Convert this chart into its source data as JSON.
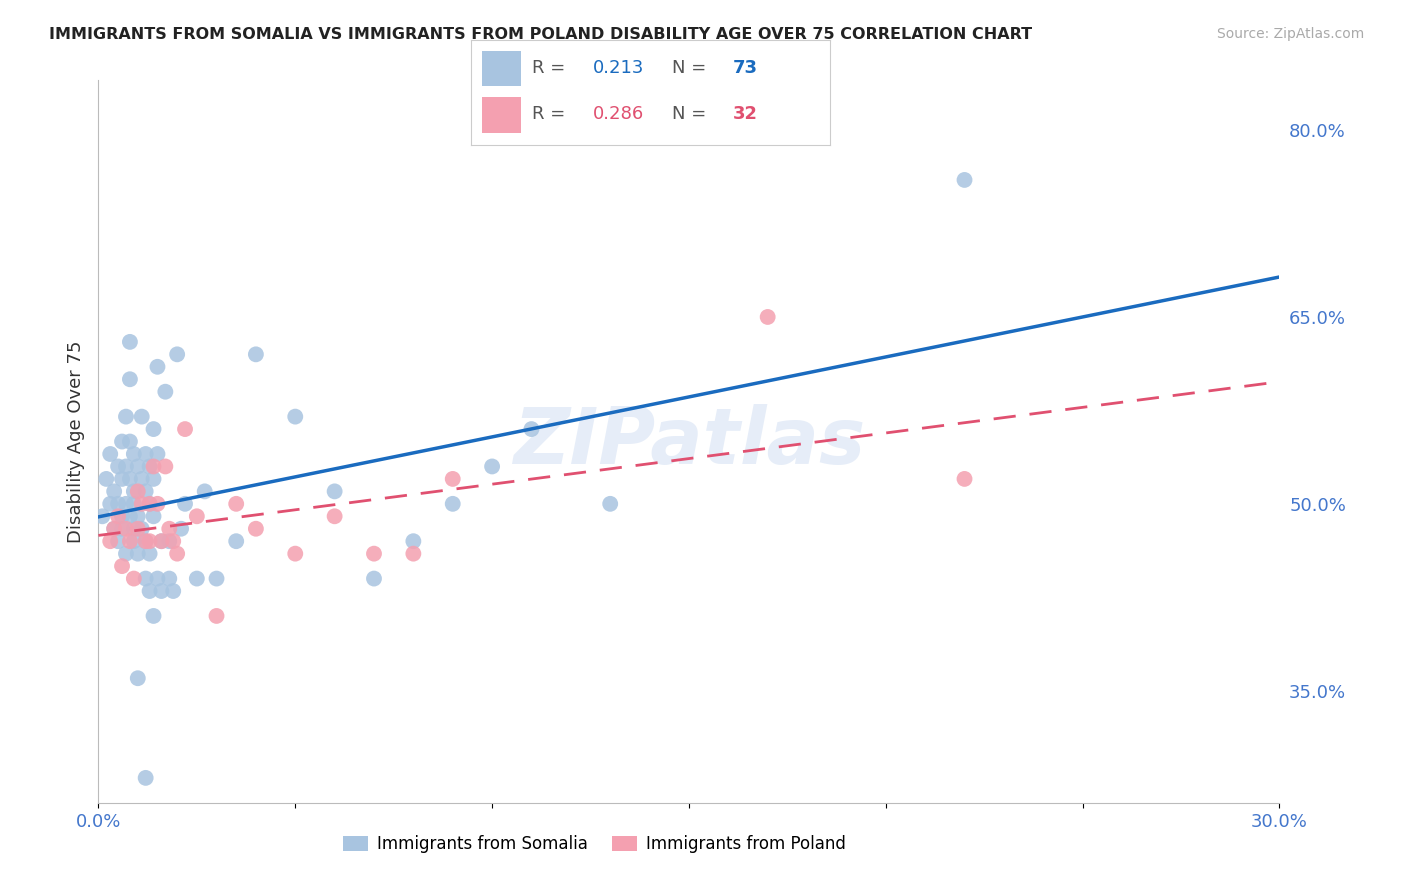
{
  "title": "IMMIGRANTS FROM SOMALIA VS IMMIGRANTS FROM POLAND DISABILITY AGE OVER 75 CORRELATION CHART",
  "source": "Source: ZipAtlas.com",
  "ylabel": "Disability Age Over 75",
  "xlim": [
    0.0,
    0.3
  ],
  "ylim": [
    0.26,
    0.84
  ],
  "yticks_right": [
    0.8,
    0.65,
    0.5,
    0.35
  ],
  "ytick_right_labels": [
    "80.0%",
    "65.0%",
    "50.0%",
    "35.0%"
  ],
  "R_somalia": 0.213,
  "N_somalia": 73,
  "R_poland": 0.286,
  "N_poland": 32,
  "color_somalia": "#a8c4e0",
  "color_poland": "#f4a0b0",
  "line_color_somalia": "#1a6bbf",
  "line_color_poland": "#e05070",
  "background": "#ffffff",
  "grid_color": "#cccccc",
  "axis_color": "#4477cc",
  "watermark": "ZIPatlas",
  "somalia_x": [
    0.001,
    0.002,
    0.003,
    0.003,
    0.004,
    0.004,
    0.005,
    0.005,
    0.005,
    0.006,
    0.006,
    0.006,
    0.006,
    0.007,
    0.007,
    0.007,
    0.007,
    0.008,
    0.008,
    0.008,
    0.008,
    0.008,
    0.009,
    0.009,
    0.009,
    0.009,
    0.009,
    0.01,
    0.01,
    0.01,
    0.011,
    0.011,
    0.011,
    0.012,
    0.012,
    0.012,
    0.012,
    0.013,
    0.013,
    0.013,
    0.013,
    0.014,
    0.014,
    0.014,
    0.014,
    0.015,
    0.015,
    0.015,
    0.016,
    0.016,
    0.017,
    0.018,
    0.018,
    0.019,
    0.02,
    0.021,
    0.022,
    0.025,
    0.027,
    0.03,
    0.035,
    0.04,
    0.05,
    0.06,
    0.07,
    0.08,
    0.09,
    0.1,
    0.11,
    0.13,
    0.22,
    0.01,
    0.012
  ],
  "somalia_y": [
    0.49,
    0.52,
    0.5,
    0.54,
    0.48,
    0.51,
    0.47,
    0.5,
    0.53,
    0.49,
    0.52,
    0.55,
    0.48,
    0.46,
    0.5,
    0.53,
    0.57,
    0.49,
    0.52,
    0.55,
    0.6,
    0.63,
    0.48,
    0.51,
    0.54,
    0.47,
    0.5,
    0.53,
    0.46,
    0.49,
    0.52,
    0.57,
    0.48,
    0.51,
    0.54,
    0.44,
    0.47,
    0.5,
    0.53,
    0.43,
    0.46,
    0.49,
    0.52,
    0.41,
    0.56,
    0.61,
    0.54,
    0.44,
    0.47,
    0.43,
    0.59,
    0.44,
    0.47,
    0.43,
    0.62,
    0.48,
    0.5,
    0.44,
    0.51,
    0.44,
    0.47,
    0.62,
    0.57,
    0.51,
    0.44,
    0.47,
    0.5,
    0.53,
    0.56,
    0.5,
    0.76,
    0.36,
    0.28
  ],
  "poland_x": [
    0.003,
    0.004,
    0.005,
    0.006,
    0.007,
    0.008,
    0.009,
    0.01,
    0.01,
    0.011,
    0.012,
    0.013,
    0.013,
    0.014,
    0.015,
    0.016,
    0.017,
    0.018,
    0.019,
    0.02,
    0.022,
    0.025,
    0.03,
    0.035,
    0.04,
    0.05,
    0.06,
    0.07,
    0.08,
    0.09,
    0.17,
    0.22
  ],
  "poland_y": [
    0.47,
    0.48,
    0.49,
    0.45,
    0.48,
    0.47,
    0.44,
    0.48,
    0.51,
    0.5,
    0.47,
    0.5,
    0.47,
    0.53,
    0.5,
    0.47,
    0.53,
    0.48,
    0.47,
    0.46,
    0.56,
    0.49,
    0.41,
    0.5,
    0.48,
    0.46,
    0.49,
    0.46,
    0.46,
    0.52,
    0.65,
    0.52
  ]
}
